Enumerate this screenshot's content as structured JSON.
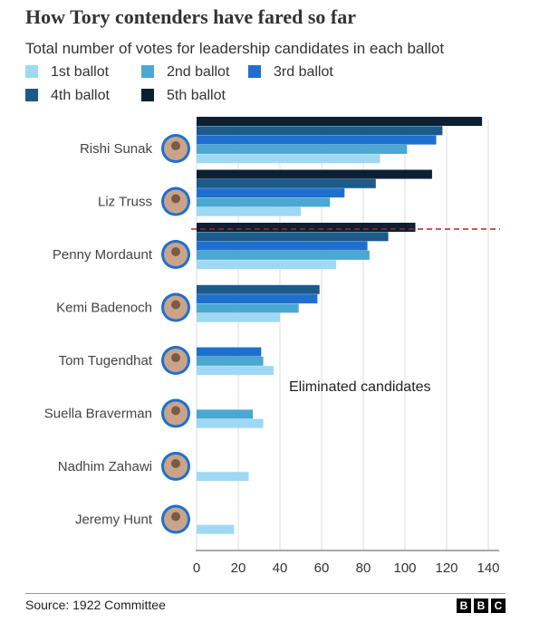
{
  "header": {
    "title": "How Tory contenders have fared so far",
    "subtitle": "Total number of votes for leadership candidates in each ballot"
  },
  "chart_data": {
    "type": "bar",
    "orientation": "horizontal",
    "title": "How Tory contenders have fared so far",
    "subtitle": "Total number of votes for leadership candidates in each ballot",
    "categories": [
      "Rishi Sunak",
      "Liz Truss",
      "Penny Mordaunt",
      "Kemi Badenoch",
      "Tom Tugendhat",
      "Suella Braverman",
      "Nadhim Zahawi",
      "Jeremy Hunt"
    ],
    "series": [
      {
        "name": "1st ballot",
        "color": "#9fd8f5",
        "values": [
          88,
          50,
          67,
          40,
          37,
          32,
          25,
          18
        ]
      },
      {
        "name": "2nd ballot",
        "color": "#4aa8d2",
        "values": [
          101,
          64,
          83,
          49,
          32,
          27,
          null,
          null
        ]
      },
      {
        "name": "3rd ballot",
        "color": "#1f6fcf",
        "values": [
          115,
          71,
          82,
          58,
          31,
          null,
          null,
          null
        ]
      },
      {
        "name": "4th ballot",
        "color": "#1c5a8a",
        "values": [
          118,
          86,
          92,
          59,
          null,
          null,
          null,
          null
        ]
      },
      {
        "name": "5th ballot",
        "color": "#0d1f33",
        "values": [
          137,
          113,
          105,
          null,
          null,
          null,
          null,
          null
        ]
      }
    ],
    "xlim": [
      0,
      140
    ],
    "xticks": [
      0,
      20,
      40,
      60,
      80,
      100,
      120,
      140
    ],
    "grid": true,
    "legend_position": "top",
    "annotation": "Eliminated candidates",
    "cutoff_line": {
      "after_category": "Liz Truss",
      "style": "dashed",
      "color": "#b22222"
    }
  },
  "footer": {
    "source": "Source: 1922 Committee",
    "logo_letters": [
      "B",
      "B",
      "C"
    ]
  }
}
